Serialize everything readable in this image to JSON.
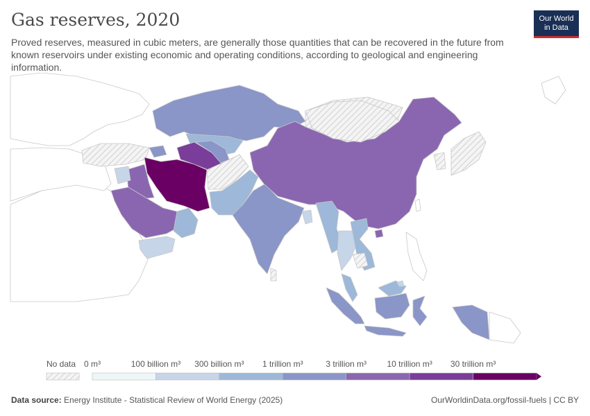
{
  "header": {
    "title": "Gas reserves, 2020",
    "subtitle": "Proved reserves, measured in cubic meters, are generally those quantities that can be recovered in the future from known reservoirs under existing economic and operating conditions, according to geological and engineering information."
  },
  "logo": {
    "line1": "Our World",
    "line2": "in Data"
  },
  "legend": {
    "no_data_label": "No data",
    "bins": [
      "0 m³",
      "100 billion m³",
      "300 billion m³",
      "1 trillion m³",
      "3 trillion m³",
      "10 trillion m³",
      "30 trillion m³"
    ],
    "colors": [
      "#eef7f8",
      "#c6d5e8",
      "#9db8d8",
      "#8a95c8",
      "#8a66b0",
      "#7a3d9a",
      "#6a0064"
    ]
  },
  "footer": {
    "source_label": "Data source:",
    "source_text": "Energy Institute - Statistical Review of World Energy (2025)",
    "url": "OurWorldinData.org/fossil-fuels | CC BY"
  },
  "map_colors": {
    "no_data": "#e8e8e8",
    "land": "#ffffff",
    "border": "#c8c8c8",
    "highest": "#6a0064"
  }
}
